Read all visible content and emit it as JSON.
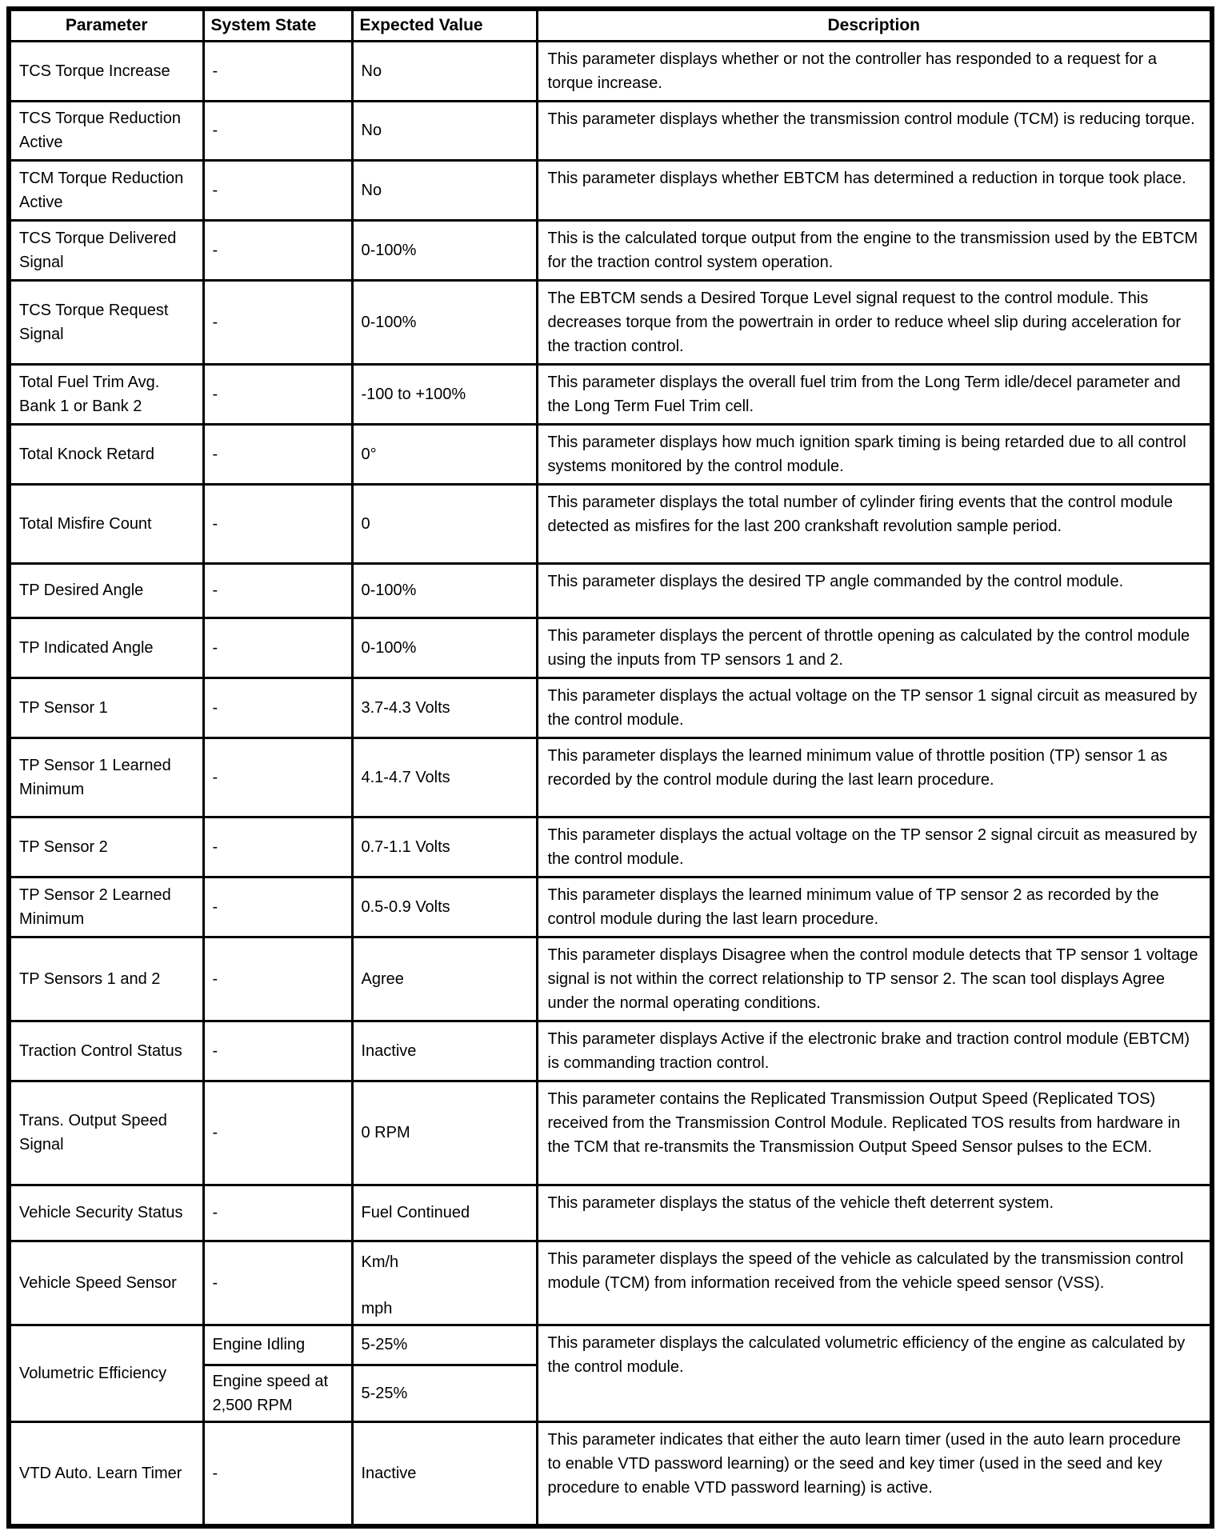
{
  "table": {
    "headers": [
      "Parameter",
      "System State",
      "Expected Value",
      "Description"
    ],
    "rows": [
      {
        "parameter": "TCS Torque Increase",
        "state": "-",
        "value": "No",
        "description": "This parameter displays whether or not the controller has responded to a request for a torque increase."
      },
      {
        "parameter": "TCS Torque Reduction Active",
        "state": "-",
        "value": "No",
        "description": "This parameter displays whether the transmission control module (TCM) is reducing torque."
      },
      {
        "parameter": "TCM Torque Reduction Active",
        "state": "-",
        "value": "No",
        "description": "This parameter displays whether EBTCM has determined a reduction in torque took place."
      },
      {
        "parameter": "TCS Torque Delivered Signal",
        "state": "-",
        "value": "0-100%",
        "description": "This is the calculated torque output from the engine to the transmission used by the EBTCM for the traction control system operation."
      },
      {
        "parameter": "TCS Torque Request Signal",
        "state": "-",
        "value": "0-100%",
        "description": "The EBTCM sends a Desired Torque Level signal request to the control module. This decreases torque from the powertrain in order to reduce wheel slip during acceleration for the traction control."
      },
      {
        "parameter": "Total Fuel Trim Avg. Bank 1 or Bank 2",
        "state": "-",
        "value": "-100 to +100%",
        "description": "This parameter displays the overall fuel trim from the Long Term idle/decel parameter and the Long Term Fuel Trim cell."
      },
      {
        "parameter": "Total Knock Retard",
        "state": "-",
        "value": "0°",
        "description": "This parameter displays how much ignition spark timing is being retarded due to all control systems monitored by the control module."
      },
      {
        "parameter": "Total Misfire Count",
        "state": "-",
        "value": "0",
        "description": "This parameter displays the total number of cylinder firing events that the control module detected as misfires for the last 200 crankshaft revolution sample period."
      },
      {
        "parameter": "TP Desired Angle",
        "state": "-",
        "value": "0-100%",
        "description": "This parameter displays the desired TP angle commanded by the control module."
      },
      {
        "parameter": "TP Indicated Angle",
        "state": "-",
        "value": "0-100%",
        "description": "This parameter displays the percent of throttle opening as calculated by the control module using the inputs from TP sensors 1 and 2."
      },
      {
        "parameter": "TP Sensor 1",
        "state": "-",
        "value": "3.7-4.3 Volts",
        "description": "This parameter displays the actual voltage on the TP sensor 1 signal circuit as measured by the control module."
      },
      {
        "parameter": "TP Sensor 1 Learned Minimum",
        "state": "-",
        "value": "4.1-4.7 Volts",
        "description": "This parameter displays the learned minimum value of throttle position (TP) sensor 1 as recorded by the control module during the last learn procedure."
      },
      {
        "parameter": "TP Sensor 2",
        "state": "-",
        "value": "0.7-1.1 Volts",
        "description": "This parameter displays the actual voltage on the TP sensor 2 signal circuit as measured by the control module."
      },
      {
        "parameter": "TP Sensor 2 Learned Minimum",
        "state": "-",
        "value": "0.5-0.9 Volts",
        "description": "This parameter displays the learned minimum value of TP sensor 2 as recorded by the control module during the last learn procedure."
      },
      {
        "parameter": "TP Sensors 1 and 2",
        "state": "-",
        "value": "Agree",
        "description": "This parameter displays Disagree when the control module detects that TP sensor 1 voltage signal is not within the correct relationship to TP sensor 2. The scan tool displays Agree under the normal operating conditions."
      },
      {
        "parameter": "Traction Control Status",
        "state": "-",
        "value": "Inactive",
        "description": "This parameter displays Active if the electronic brake and traction control module (EBTCM) is commanding traction control."
      },
      {
        "parameter": "Trans. Output Speed Signal",
        "state": "-",
        "value": "0 RPM",
        "description": "This parameter contains the Replicated Transmission Output Speed (Replicated TOS) received from the Transmission Control Module. Replicated TOS results from hardware in the TCM that re-transmits the Transmission Output Speed Sensor pulses to the ECM."
      },
      {
        "parameter": "Vehicle Security Status",
        "state": "-",
        "value": "Fuel Continued",
        "description": "This parameter displays the status of the vehicle theft deterrent system."
      },
      {
        "parameter": "Vehicle Speed Sensor",
        "state": "-",
        "value_lines": [
          "Km/h",
          "mph"
        ],
        "description": "This parameter displays the speed of the vehicle as calculated by the transmission control module (TCM) from information received from the vehicle speed sensor (VSS)."
      },
      {
        "parameter": "Volumetric Efficiency",
        "sub_rows": [
          {
            "state": "Engine Idling",
            "value": "5-25%"
          },
          {
            "state": "Engine speed at 2,500 RPM",
            "value": "5-25%"
          }
        ],
        "description": "This parameter displays the calculated volumetric efficiency of the engine as calculated by the control module."
      },
      {
        "parameter": "VTD Auto. Learn Timer",
        "state": "-",
        "value": "Inactive",
        "description": "This parameter indicates that either the auto learn timer (used in the auto learn procedure to enable VTD password learning) or the seed and key timer (used in the seed and key procedure to enable VTD password learning) is active."
      }
    ]
  }
}
